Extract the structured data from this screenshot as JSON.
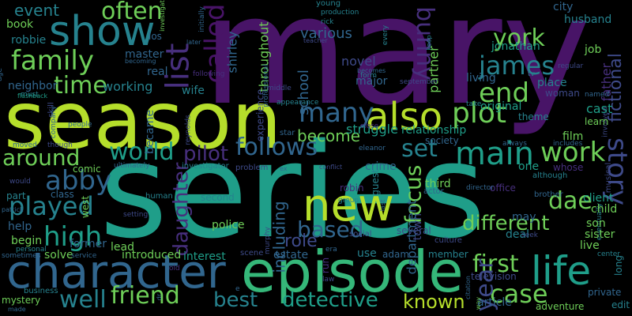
{
  "colors": {
    "background": "#000000",
    "purple": "#481467",
    "violet": "#472f7d",
    "indigo": "#3e4a89",
    "blue": "#31668e",
    "steel": "#26828e",
    "teal": "#1f9e89",
    "green": "#35b779",
    "lime": "#6ece58",
    "yellow": "#b5de2b"
  },
  "words": [
    {
      "text": "mary",
      "color": "purple"
    },
    {
      "text": "season",
      "color": "yellow"
    },
    {
      "text": "series",
      "color": "teal"
    },
    {
      "text": "episode",
      "color": "green"
    },
    {
      "text": "character",
      "color": "blue"
    },
    {
      "text": "show",
      "color": "steel"
    },
    {
      "text": "family",
      "color": "lime"
    },
    {
      "text": "also",
      "color": "yellow"
    },
    {
      "text": "many",
      "color": "blue"
    },
    {
      "text": "plot",
      "color": "lime"
    },
    {
      "text": "new",
      "color": "yellow"
    },
    {
      "text": "life",
      "color": "teal"
    },
    {
      "text": "work",
      "color": "lime"
    },
    {
      "text": "main",
      "color": "teal"
    },
    {
      "text": "friend",
      "color": "lime"
    },
    {
      "text": "best",
      "color": "steel"
    },
    {
      "text": "detective",
      "color": "teal"
    },
    {
      "text": "known",
      "color": "yellow"
    },
    {
      "text": "case",
      "color": "lime"
    },
    {
      "text": "well",
      "color": "steel"
    },
    {
      "text": "high",
      "color": "teal"
    },
    {
      "text": "played",
      "color": "steel"
    },
    {
      "text": "abby",
      "color": "blue"
    },
    {
      "text": "world",
      "color": "teal"
    },
    {
      "text": "around",
      "color": "lime"
    },
    {
      "text": "time",
      "color": "lime"
    },
    {
      "text": "james",
      "color": "steel"
    },
    {
      "text": "york",
      "color": "lime"
    },
    {
      "text": "end",
      "color": "lime"
    },
    {
      "text": "often",
      "color": "purple"
    },
    {
      "text": "list",
      "color": "violet"
    },
    {
      "text": "called",
      "color": "lime"
    },
    {
      "text": "event",
      "color": "steel"
    },
    {
      "text": "follows",
      "color": "blue"
    },
    {
      "text": "set",
      "color": "steel"
    },
    {
      "text": "bunny",
      "color": "violet"
    },
    {
      "text": "pilot",
      "color": "violet"
    },
    {
      "text": "story",
      "color": "indigo"
    },
    {
      "text": "first",
      "color": "lime"
    },
    {
      "text": "year",
      "color": "indigo"
    },
    {
      "text": "based",
      "color": "blue"
    },
    {
      "text": "different",
      "color": "lime"
    },
    {
      "text": "focus",
      "color": "lime"
    },
    {
      "text": "role",
      "color": "indigo"
    },
    {
      "text": "daughter",
      "color": "violet"
    },
    {
      "text": "including",
      "color": "blue"
    },
    {
      "text": "become",
      "color": "lime"
    },
    {
      "text": "dae",
      "color": "lime"
    },
    {
      "text": "working",
      "color": "steel"
    },
    {
      "text": "various",
      "color": "blue"
    },
    {
      "text": "school",
      "color": "blue"
    },
    {
      "text": "throughout",
      "color": "lime"
    },
    {
      "text": "shirley",
      "color": "blue"
    },
    {
      "text": "fictional",
      "color": "indigo"
    },
    {
      "text": "book",
      "color": "lime"
    },
    {
      "text": "robbie",
      "color": "steel"
    },
    {
      "text": "master",
      "color": "blue"
    },
    {
      "text": "los",
      "color": "blue"
    },
    {
      "text": "real",
      "color": "blue"
    },
    {
      "text": "wife",
      "color": "steel"
    },
    {
      "text": "neighbor",
      "color": "blue"
    },
    {
      "text": "novel",
      "color": "indigo"
    },
    {
      "text": "major",
      "color": "blue"
    },
    {
      "text": "partner",
      "color": "lime"
    },
    {
      "text": "jonathan",
      "color": "teal"
    },
    {
      "text": "job",
      "color": "lime"
    },
    {
      "text": "city",
      "color": "blue"
    },
    {
      "text": "husband",
      "color": "steel"
    },
    {
      "text": "living",
      "color": "blue"
    },
    {
      "text": "place",
      "color": "steel"
    },
    {
      "text": "woman",
      "color": "indigo"
    },
    {
      "text": "father",
      "color": "violet"
    },
    {
      "text": "original",
      "color": "teal"
    },
    {
      "text": "cast",
      "color": "teal"
    },
    {
      "text": "relationship",
      "color": "teal"
    },
    {
      "text": "struggle",
      "color": "teal"
    },
    {
      "text": "society",
      "color": "blue"
    },
    {
      "text": "film",
      "color": "lime"
    },
    {
      "text": "son",
      "color": "lime"
    },
    {
      "text": "third",
      "color": "lime"
    },
    {
      "text": "crime",
      "color": "blue"
    },
    {
      "text": "one",
      "color": "teal"
    },
    {
      "text": "client",
      "color": "teal"
    },
    {
      "text": "child",
      "color": "lime"
    },
    {
      "text": "deal",
      "color": "steel"
    },
    {
      "text": "may",
      "color": "blue"
    },
    {
      "text": "former",
      "color": "blue"
    },
    {
      "text": "lead",
      "color": "lime"
    },
    {
      "text": "police",
      "color": "lime"
    },
    {
      "text": "introduced",
      "color": "lime"
    },
    {
      "text": "interest",
      "color": "teal"
    },
    {
      "text": "estate",
      "color": "blue"
    },
    {
      "text": "use",
      "color": "steel"
    },
    {
      "text": "adam",
      "color": "blue"
    },
    {
      "text": "member",
      "color": "steel"
    },
    {
      "text": "live",
      "color": "lime"
    },
    {
      "text": "sister",
      "color": "lime"
    },
    {
      "text": "edit",
      "color": "steel"
    },
    {
      "text": "adventure",
      "color": "lime"
    },
    {
      "text": "article",
      "color": "blue"
    },
    {
      "text": "television",
      "color": "indigo"
    },
    {
      "text": "private",
      "color": "blue"
    },
    {
      "text": "mystery",
      "color": "lime"
    },
    {
      "text": "begin",
      "color": "lime"
    },
    {
      "text": "help",
      "color": "blue"
    },
    {
      "text": "solve",
      "color": "lime"
    },
    {
      "text": "comic",
      "color": "lime"
    },
    {
      "text": "class",
      "color": "blue"
    },
    {
      "text": "part",
      "color": "steel"
    },
    {
      "text": "second",
      "color": "steel"
    },
    {
      "text": "angeles",
      "color": "blue"
    },
    {
      "text": "department",
      "color": "blue"
    },
    {
      "text": "town",
      "color": "indigo"
    },
    {
      "text": "several",
      "color": "indigo"
    },
    {
      "text": "theme",
      "color": "steel"
    },
    {
      "text": "learn",
      "color": "lime"
    },
    {
      "text": "office",
      "color": "violet"
    },
    {
      "text": "director",
      "color": "blue"
    },
    {
      "text": "actor",
      "color": "blue"
    },
    {
      "text": "robin",
      "color": "violet"
    },
    {
      "text": "guest",
      "color": "steel"
    },
    {
      "text": "brother",
      "color": "blue"
    },
    {
      "text": "although",
      "color": "steel"
    },
    {
      "text": "usually",
      "color": "indigo"
    },
    {
      "text": "became",
      "color": "blue"
    },
    {
      "text": "experience",
      "color": "indigo"
    },
    {
      "text": "star",
      "color": "blue"
    },
    {
      "text": "investigator",
      "color": "steel"
    },
    {
      "text": "problem",
      "color": "indigo"
    },
    {
      "text": "ultimately",
      "color": "blue"
    },
    {
      "text": "west",
      "color": "lime"
    },
    {
      "text": "setting",
      "color": "indigo"
    },
    {
      "text": "human",
      "color": "steel"
    },
    {
      "text": "service",
      "color": "blue"
    },
    {
      "text": "law",
      "color": "indigo"
    },
    {
      "text": "era",
      "color": "blue"
    },
    {
      "text": "run",
      "color": "violet"
    },
    {
      "text": "scene",
      "color": "indigo"
    },
    {
      "text": "citation",
      "color": "blue"
    },
    {
      "text": "culture",
      "color": "indigo"
    },
    {
      "text": "social",
      "color": "indigo"
    },
    {
      "text": "rick",
      "color": "steel"
    },
    {
      "text": "production",
      "color": "steel"
    },
    {
      "text": "young",
      "color": "steel"
    },
    {
      "text": "every",
      "color": "steel"
    },
    {
      "text": "keep",
      "color": "steel"
    },
    {
      "text": "teacher",
      "color": "indigo"
    },
    {
      "text": "becomes",
      "color": "blue"
    },
    {
      "text": "tv",
      "color": "steel"
    },
    {
      "text": "regular",
      "color": "indigo"
    },
    {
      "text": "form",
      "color": "steel"
    },
    {
      "text": "must",
      "color": "steel"
    },
    {
      "text": "flashback",
      "color": "teal"
    },
    {
      "text": "age",
      "color": "blue"
    },
    {
      "text": "people",
      "color": "blue"
    },
    {
      "text": "moved",
      "color": "blue"
    },
    {
      "text": "skill",
      "color": "indigo"
    },
    {
      "text": "though",
      "color": "indigo"
    },
    {
      "text": "company",
      "color": "blue"
    },
    {
      "text": "would",
      "color": "indigo"
    },
    {
      "text": "patrick",
      "color": "blue"
    },
    {
      "text": "personal",
      "color": "steel"
    },
    {
      "text": "sometimes",
      "color": "blue"
    },
    {
      "text": "business",
      "color": "steel"
    },
    {
      "text": "made",
      "color": "blue"
    },
    {
      "text": "middle",
      "color": "indigo"
    },
    {
      "text": "appearance",
      "color": "steel"
    },
    {
      "text": "becoming",
      "color": "blue"
    },
    {
      "text": "reynolds",
      "color": "indigo"
    },
    {
      "text": "later",
      "color": "blue"
    },
    {
      "text": "old",
      "color": "violet"
    },
    {
      "text": "professional",
      "color": "blue"
    },
    {
      "text": "shown",
      "color": "blue"
    },
    {
      "text": "initially",
      "color": "blue"
    },
    {
      "text": "element",
      "color": "indigo"
    },
    {
      "text": "following",
      "color": "violet"
    },
    {
      "text": "investigation",
      "color": "lime"
    },
    {
      "text": "group",
      "color": "steel"
    },
    {
      "text": "last",
      "color": "blue"
    },
    {
      "text": "conflict",
      "color": "indigo"
    },
    {
      "text": "ex",
      "color": "blue"
    },
    {
      "text": "murphy",
      "color": "indigo"
    },
    {
      "text": "close",
      "color": "violet"
    },
    {
      "text": "eleanor",
      "color": "blue"
    },
    {
      "text": "includes",
      "color": "blue"
    },
    {
      "text": "whose",
      "color": "violet"
    },
    {
      "text": "september",
      "color": "indigo"
    },
    {
      "text": "take",
      "color": "steel"
    },
    {
      "text": "named",
      "color": "blue"
    },
    {
      "text": "involved",
      "color": "indigo"
    },
    {
      "text": "always",
      "color": "blue"
    },
    {
      "text": "musical",
      "color": "indigo"
    },
    {
      "text": "eventually",
      "color": "steel"
    },
    {
      "text": "center",
      "color": "steel"
    },
    {
      "text": "long",
      "color": "steel"
    },
    {
      "text": "seek",
      "color": "indigo"
    },
    {
      "text": "way",
      "color": "lime"
    },
    {
      "text": "dr",
      "color": "blue"
    },
    {
      "text": "e",
      "color": "blue"
    }
  ]
}
